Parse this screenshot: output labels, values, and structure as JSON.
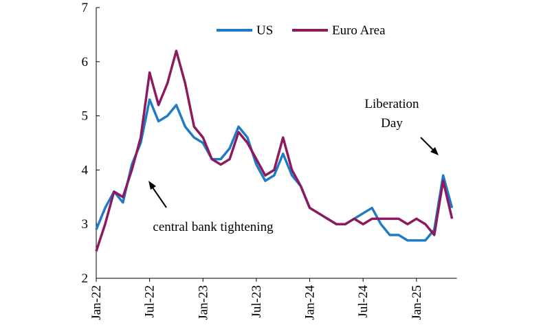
{
  "chart_data": {
    "type": "line",
    "categories": [
      "Jan-22",
      null,
      null,
      null,
      null,
      null,
      "Jul-22",
      null,
      null,
      null,
      null,
      null,
      "Jan-23",
      null,
      null,
      null,
      null,
      null,
      "Jul-23",
      null,
      null,
      null,
      null,
      null,
      "Jan-24",
      null,
      null,
      null,
      null,
      null,
      "Jul-24",
      null,
      null,
      null,
      null,
      null,
      "Jan-25",
      null,
      null,
      null,
      null
    ],
    "series": [
      {
        "name": "US",
        "color": "#1f7bc6",
        "values": [
          2.9,
          3.3,
          3.6,
          3.4,
          4.1,
          4.5,
          5.3,
          4.9,
          5.0,
          5.2,
          4.8,
          4.6,
          4.5,
          4.2,
          4.2,
          4.4,
          4.8,
          4.6,
          4.1,
          3.8,
          3.9,
          4.3,
          3.9,
          3.7,
          3.3,
          3.2,
          3.1,
          3.0,
          3.0,
          3.1,
          3.2,
          3.3,
          3.0,
          2.8,
          2.8,
          2.7,
          2.7,
          2.7,
          2.9,
          3.9,
          3.3
        ]
      },
      {
        "name": "Euro Area",
        "color": "#8b1a5e",
        "values": [
          2.5,
          3.0,
          3.6,
          3.5,
          4.0,
          4.6,
          5.8,
          5.2,
          5.6,
          6.2,
          5.6,
          4.8,
          4.6,
          4.2,
          4.1,
          4.2,
          4.7,
          4.5,
          4.2,
          3.9,
          4.0,
          4.6,
          4.0,
          3.7,
          3.3,
          3.2,
          3.1,
          3.0,
          3.0,
          3.1,
          3.0,
          3.1,
          3.1,
          3.1,
          3.1,
          3.0,
          3.1,
          3.0,
          2.8,
          3.8,
          3.1
        ]
      }
    ],
    "ylim": [
      2,
      7
    ],
    "yticks": [
      2,
      3,
      4,
      5,
      6,
      7
    ],
    "annotations": {
      "liberation_day": [
        "Liberation",
        "Day"
      ],
      "tightening": "central bank tightening"
    }
  }
}
